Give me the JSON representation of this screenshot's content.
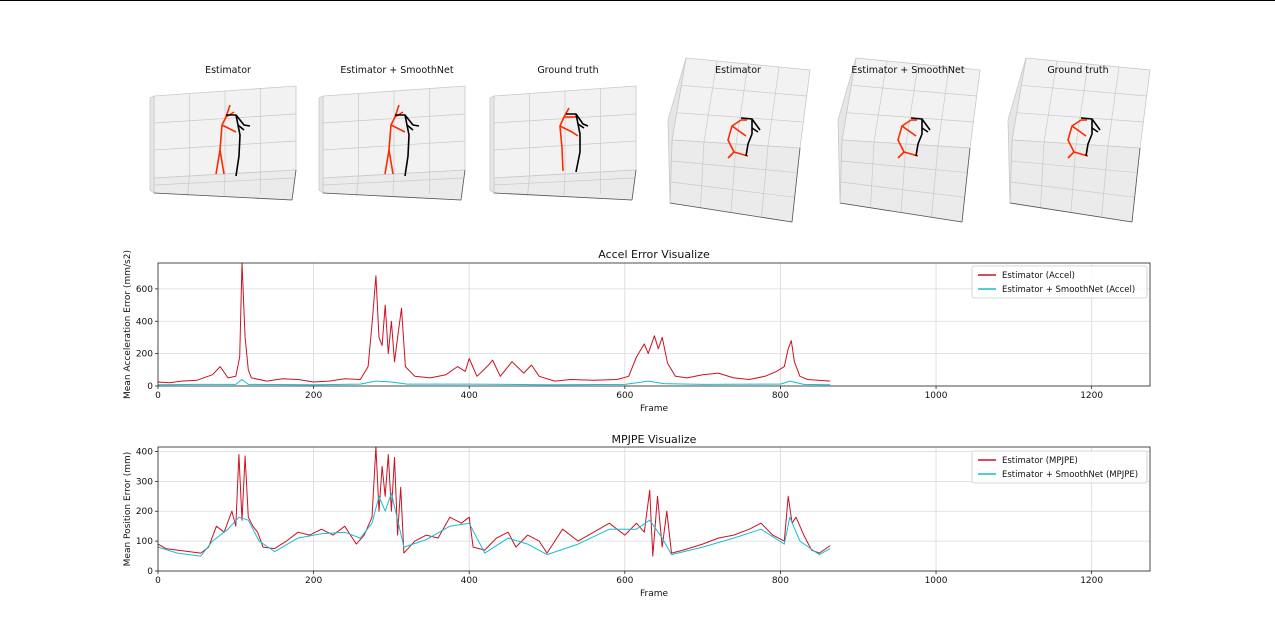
{
  "skeleton_panels": [
    {
      "title": "Estimator",
      "view": "front",
      "pose": "A",
      "limb_color": "#ff2a00",
      "torso_color": "#000000"
    },
    {
      "title": "Estimator + SmoothNet",
      "view": "front",
      "pose": "A",
      "limb_color": "#ff2a00",
      "torso_color": "#000000"
    },
    {
      "title": "Ground truth",
      "view": "front",
      "pose": "B",
      "limb_color": "#ff2a00",
      "torso_color": "#000000"
    },
    {
      "title": "Estimator",
      "view": "top",
      "pose": "C",
      "limb_color": "#ff2a00",
      "torso_color": "#000000"
    },
    {
      "title": "Estimator + SmoothNet",
      "view": "top",
      "pose": "C",
      "limb_color": "#ff2a00",
      "torso_color": "#000000"
    },
    {
      "title": "Ground truth",
      "view": "top",
      "pose": "C",
      "limb_color": "#ff2a00",
      "torso_color": "#000000"
    }
  ],
  "chart_data": [
    {
      "type": "line",
      "title": "Accel Error Visualize",
      "xlabel": "Frame",
      "ylabel": "Mean Acceleration Error (mm/s2)",
      "xlim": [
        0,
        1275
      ],
      "ylim": [
        0,
        760
      ],
      "xticks": [
        0,
        200,
        400,
        600,
        800,
        1000,
        1200
      ],
      "yticks": [
        0,
        200,
        400,
        600
      ],
      "grid": true,
      "legend_position": "top-right",
      "series": [
        {
          "name": "Estimator (Accel)",
          "color": "#cc1122",
          "points": [
            [
              0,
              25
            ],
            [
              15,
              20
            ],
            [
              30,
              30
            ],
            [
              50,
              35
            ],
            [
              70,
              70
            ],
            [
              80,
              120
            ],
            [
              90,
              50
            ],
            [
              100,
              60
            ],
            [
              105,
              180
            ],
            [
              108,
              760
            ],
            [
              112,
              300
            ],
            [
              116,
              100
            ],
            [
              120,
              50
            ],
            [
              140,
              30
            ],
            [
              160,
              45
            ],
            [
              180,
              40
            ],
            [
              200,
              25
            ],
            [
              220,
              30
            ],
            [
              240,
              45
            ],
            [
              260,
              40
            ],
            [
              270,
              120
            ],
            [
              275,
              380
            ],
            [
              280,
              680
            ],
            [
              284,
              300
            ],
            [
              288,
              250
            ],
            [
              292,
              500
            ],
            [
              296,
              200
            ],
            [
              300,
              400
            ],
            [
              304,
              150
            ],
            [
              308,
              300
            ],
            [
              313,
              480
            ],
            [
              318,
              120
            ],
            [
              330,
              60
            ],
            [
              350,
              50
            ],
            [
              370,
              70
            ],
            [
              385,
              120
            ],
            [
              395,
              90
            ],
            [
              400,
              170
            ],
            [
              410,
              60
            ],
            [
              425,
              130
            ],
            [
              430,
              160
            ],
            [
              440,
              60
            ],
            [
              455,
              150
            ],
            [
              470,
              80
            ],
            [
              480,
              130
            ],
            [
              490,
              60
            ],
            [
              510,
              30
            ],
            [
              530,
              40
            ],
            [
              560,
              35
            ],
            [
              590,
              40
            ],
            [
              605,
              60
            ],
            [
              615,
              180
            ],
            [
              625,
              260
            ],
            [
              630,
              200
            ],
            [
              638,
              310
            ],
            [
              643,
              230
            ],
            [
              648,
              300
            ],
            [
              655,
              140
            ],
            [
              665,
              60
            ],
            [
              680,
              50
            ],
            [
              700,
              70
            ],
            [
              720,
              80
            ],
            [
              740,
              50
            ],
            [
              760,
              40
            ],
            [
              780,
              60
            ],
            [
              795,
              90
            ],
            [
              805,
              120
            ],
            [
              810,
              230
            ],
            [
              814,
              280
            ],
            [
              818,
              150
            ],
            [
              825,
              60
            ],
            [
              835,
              40
            ],
            [
              864,
              30
            ]
          ]
        },
        {
          "name": "Estimator + SmoothNet (Accel)",
          "color": "#17becf",
          "points": [
            [
              0,
              8
            ],
            [
              50,
              10
            ],
            [
              100,
              10
            ],
            [
              108,
              40
            ],
            [
              116,
              10
            ],
            [
              200,
              8
            ],
            [
              260,
              12
            ],
            [
              280,
              30
            ],
            [
              300,
              25
            ],
            [
              320,
              12
            ],
            [
              400,
              12
            ],
            [
              500,
              8
            ],
            [
              600,
              10
            ],
            [
              630,
              30
            ],
            [
              650,
              15
            ],
            [
              700,
              10
            ],
            [
              800,
              12
            ],
            [
              812,
              30
            ],
            [
              830,
              10
            ],
            [
              864,
              8
            ]
          ]
        }
      ]
    },
    {
      "type": "line",
      "title": "MPJPE Visualize",
      "xlabel": "Frame",
      "ylabel": "Mean Position Error (mm)",
      "xlim": [
        0,
        1275
      ],
      "ylim": [
        0,
        415
      ],
      "xticks": [
        0,
        200,
        400,
        600,
        800,
        1000,
        1200
      ],
      "yticks": [
        0,
        100,
        200,
        300,
        400
      ],
      "grid": true,
      "legend_position": "top-right",
      "series": [
        {
          "name": "Estimator (MPJPE)",
          "color": "#cc1122",
          "points": [
            [
              0,
              90
            ],
            [
              10,
              75
            ],
            [
              25,
              70
            ],
            [
              40,
              65
            ],
            [
              55,
              60
            ],
            [
              65,
              80
            ],
            [
              75,
              150
            ],
            [
              85,
              130
            ],
            [
              95,
              200
            ],
            [
              100,
              150
            ],
            [
              104,
              390
            ],
            [
              108,
              170
            ],
            [
              112,
              385
            ],
            [
              116,
              180
            ],
            [
              122,
              150
            ],
            [
              128,
              130
            ],
            [
              135,
              80
            ],
            [
              150,
              75
            ],
            [
              165,
              100
            ],
            [
              180,
              130
            ],
            [
              195,
              120
            ],
            [
              210,
              140
            ],
            [
              225,
              120
            ],
            [
              240,
              150
            ],
            [
              255,
              90
            ],
            [
              265,
              120
            ],
            [
              275,
              180
            ],
            [
              280,
              415
            ],
            [
              284,
              200
            ],
            [
              288,
              350
            ],
            [
              292,
              250
            ],
            [
              296,
              390
            ],
            [
              300,
              200
            ],
            [
              304,
              380
            ],
            [
              308,
              120
            ],
            [
              312,
              280
            ],
            [
              316,
              60
            ],
            [
              330,
              100
            ],
            [
              345,
              120
            ],
            [
              360,
              110
            ],
            [
              375,
              180
            ],
            [
              390,
              160
            ],
            [
              400,
              180
            ],
            [
              405,
              80
            ],
            [
              420,
              70
            ],
            [
              435,
              110
            ],
            [
              450,
              130
            ],
            [
              460,
              80
            ],
            [
              475,
              120
            ],
            [
              490,
              100
            ],
            [
              500,
              60
            ],
            [
              520,
              140
            ],
            [
              540,
              100
            ],
            [
              560,
              130
            ],
            [
              580,
              160
            ],
            [
              600,
              120
            ],
            [
              615,
              160
            ],
            [
              625,
              130
            ],
            [
              632,
              270
            ],
            [
              636,
              50
            ],
            [
              642,
              250
            ],
            [
              648,
              80
            ],
            [
              654,
              200
            ],
            [
              660,
              60
            ],
            [
              675,
              70
            ],
            [
              700,
              90
            ],
            [
              720,
              110
            ],
            [
              740,
              120
            ],
            [
              760,
              140
            ],
            [
              775,
              160
            ],
            [
              790,
              120
            ],
            [
              805,
              100
            ],
            [
              810,
              250
            ],
            [
              815,
              160
            ],
            [
              820,
              180
            ],
            [
              830,
              120
            ],
            [
              840,
              70
            ],
            [
              850,
              60
            ],
            [
              864,
              85
            ]
          ]
        },
        {
          "name": "Estimator + SmoothNet (MPJPE)",
          "color": "#17becf",
          "points": [
            [
              0,
              80
            ],
            [
              25,
              60
            ],
            [
              55,
              50
            ],
            [
              70,
              100
            ],
            [
              90,
              140
            ],
            [
              104,
              180
            ],
            [
              116,
              170
            ],
            [
              130,
              100
            ],
            [
              150,
              65
            ],
            [
              180,
              110
            ],
            [
              210,
              125
            ],
            [
              240,
              130
            ],
            [
              260,
              110
            ],
            [
              275,
              160
            ],
            [
              284,
              250
            ],
            [
              292,
              200
            ],
            [
              300,
              260
            ],
            [
              316,
              80
            ],
            [
              345,
              105
            ],
            [
              375,
              150
            ],
            [
              400,
              160
            ],
            [
              420,
              60
            ],
            [
              450,
              110
            ],
            [
              475,
              90
            ],
            [
              500,
              55
            ],
            [
              540,
              90
            ],
            [
              580,
              140
            ],
            [
              615,
              140
            ],
            [
              632,
              170
            ],
            [
              648,
              110
            ],
            [
              660,
              55
            ],
            [
              700,
              80
            ],
            [
              740,
              110
            ],
            [
              775,
              140
            ],
            [
              805,
              90
            ],
            [
              812,
              180
            ],
            [
              825,
              100
            ],
            [
              850,
              55
            ],
            [
              864,
              75
            ]
          ]
        }
      ]
    }
  ]
}
